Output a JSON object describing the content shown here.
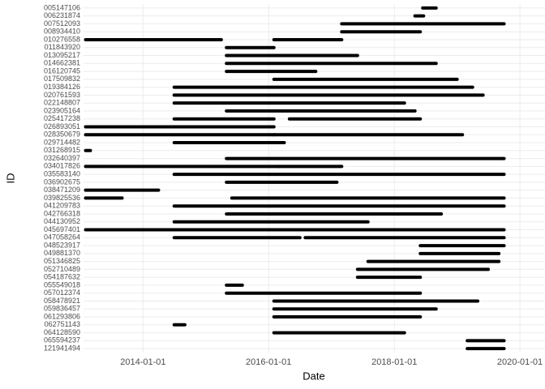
{
  "chart_data": {
    "type": "timeline",
    "x_label": "Date",
    "y_label": "ID",
    "xlim": [
      "2013-01-20",
      "2020-05-26"
    ],
    "xticks": [
      "2014-01-01",
      "2016-01-01",
      "2018-01-01",
      "2020-01-01"
    ],
    "grid": true,
    "color": "#000000",
    "rows": [
      {
        "id": "005147106",
        "segments": [
          [
            "2018-06-15",
            "2018-09-01"
          ]
        ]
      },
      {
        "id": "006231874",
        "segments": [
          [
            "2018-05-01",
            "2018-06-20"
          ]
        ]
      },
      {
        "id": "007512093",
        "segments": [
          [
            "2017-03-01",
            "2019-10-01"
          ]
        ]
      },
      {
        "id": "008934410",
        "segments": [
          [
            "2017-03-01",
            "2018-06-01"
          ]
        ]
      },
      {
        "id": "010276558",
        "segments": [
          [
            "2013-02-01",
            "2015-04-01"
          ],
          [
            "2016-02-01",
            "2017-03-01"
          ]
        ]
      },
      {
        "id": "011843920",
        "segments": [
          [
            "2015-05-01",
            "2016-02-01"
          ]
        ]
      },
      {
        "id": "013095217",
        "segments": [
          [
            "2015-05-01",
            "2017-06-01"
          ]
        ]
      },
      {
        "id": "014662381",
        "segments": [
          [
            "2015-05-01",
            "2018-09-01"
          ]
        ]
      },
      {
        "id": "016120745",
        "segments": [
          [
            "2015-05-01",
            "2016-10-01"
          ]
        ]
      },
      {
        "id": "017509832",
        "segments": [
          [
            "2016-02-01",
            "2019-01-01"
          ]
        ]
      },
      {
        "id": "019384126",
        "segments": [
          [
            "2014-07-01",
            "2019-04-01"
          ]
        ]
      },
      {
        "id": "020761593",
        "segments": [
          [
            "2014-07-01",
            "2019-06-01"
          ]
        ]
      },
      {
        "id": "022148807",
        "segments": [
          [
            "2014-07-01",
            "2018-03-01"
          ]
        ]
      },
      {
        "id": "023905164",
        "segments": [
          [
            "2015-05-01",
            "2018-05-01"
          ]
        ]
      },
      {
        "id": "025417238",
        "segments": [
          [
            "2014-07-01",
            "2016-02-01"
          ],
          [
            "2016-05-01",
            "2018-06-01"
          ]
        ]
      },
      {
        "id": "026893051",
        "segments": [
          [
            "2013-02-01",
            "2016-02-01"
          ]
        ]
      },
      {
        "id": "028350679",
        "segments": [
          [
            "2013-02-01",
            "2016-02-01"
          ],
          [
            "2016-02-01",
            "2019-02-01"
          ]
        ]
      },
      {
        "id": "029714482",
        "segments": [
          [
            "2014-07-01",
            "2016-04-01"
          ]
        ]
      },
      {
        "id": "031268915",
        "segments": [
          [
            "2013-02-01",
            "2013-03-01"
          ]
        ]
      },
      {
        "id": "032640397",
        "segments": [
          [
            "2015-05-01",
            "2019-10-01"
          ]
        ]
      },
      {
        "id": "034017826",
        "segments": [
          [
            "2013-02-01",
            "2016-03-01"
          ],
          [
            "2016-03-01",
            "2017-03-01"
          ]
        ]
      },
      {
        "id": "035583140",
        "segments": [
          [
            "2014-07-01",
            "2019-10-01"
          ]
        ]
      },
      {
        "id": "036902675",
        "segments": [
          [
            "2015-05-01",
            "2017-02-01"
          ]
        ]
      },
      {
        "id": "038471209",
        "segments": [
          [
            "2013-02-01",
            "2014-04-01"
          ]
        ]
      },
      {
        "id": "039825536",
        "segments": [
          [
            "2013-02-01",
            "2013-09-01"
          ],
          [
            "2015-06-01",
            "2019-10-01"
          ]
        ]
      },
      {
        "id": "041209783",
        "segments": [
          [
            "2014-07-01",
            "2019-10-01"
          ]
        ]
      },
      {
        "id": "042766318",
        "segments": [
          [
            "2015-05-01",
            "2018-10-01"
          ]
        ]
      },
      {
        "id": "044130952",
        "segments": [
          [
            "2014-07-01",
            "2017-08-01"
          ]
        ]
      },
      {
        "id": "045697401",
        "segments": [
          [
            "2013-02-01",
            "2019-10-01"
          ]
        ]
      },
      {
        "id": "047058264",
        "segments": [
          [
            "2014-07-01",
            "2016-07-01"
          ],
          [
            "2016-08-01",
            "2019-10-01"
          ]
        ]
      },
      {
        "id": "048523917",
        "segments": [
          [
            "2018-06-01",
            "2019-10-01"
          ]
        ]
      },
      {
        "id": "049881370",
        "segments": [
          [
            "2018-06-01",
            "2019-09-01"
          ]
        ]
      },
      {
        "id": "051346825",
        "segments": [
          [
            "2017-08-01",
            "2019-09-01"
          ]
        ]
      },
      {
        "id": "052710489",
        "segments": [
          [
            "2017-06-01",
            "2019-07-01"
          ]
        ]
      },
      {
        "id": "054187632",
        "segments": [
          [
            "2017-06-01",
            "2018-06-01"
          ]
        ]
      },
      {
        "id": "055549018",
        "segments": [
          [
            "2015-05-01",
            "2015-08-01"
          ]
        ]
      },
      {
        "id": "057012374",
        "segments": [
          [
            "2015-05-01",
            "2018-06-01"
          ]
        ]
      },
      {
        "id": "058478921",
        "segments": [
          [
            "2016-02-01",
            "2019-05-01"
          ]
        ]
      },
      {
        "id": "059836457",
        "segments": [
          [
            "2016-02-01",
            "2018-09-01"
          ]
        ]
      },
      {
        "id": "061293806",
        "segments": [
          [
            "2016-02-01",
            "2018-06-01"
          ]
        ]
      },
      {
        "id": "062751143",
        "segments": [
          [
            "2014-07-01",
            "2014-09-01"
          ]
        ]
      },
      {
        "id": "064128590",
        "segments": [
          [
            "2016-02-01",
            "2018-03-01"
          ]
        ]
      },
      {
        "id": "065594237",
        "segments": [
          [
            "2019-03-01",
            "2019-10-01"
          ]
        ]
      },
      {
        "id": "121941494",
        "segments": [
          [
            "2019-03-01",
            "2019-10-01"
          ]
        ]
      }
    ]
  }
}
